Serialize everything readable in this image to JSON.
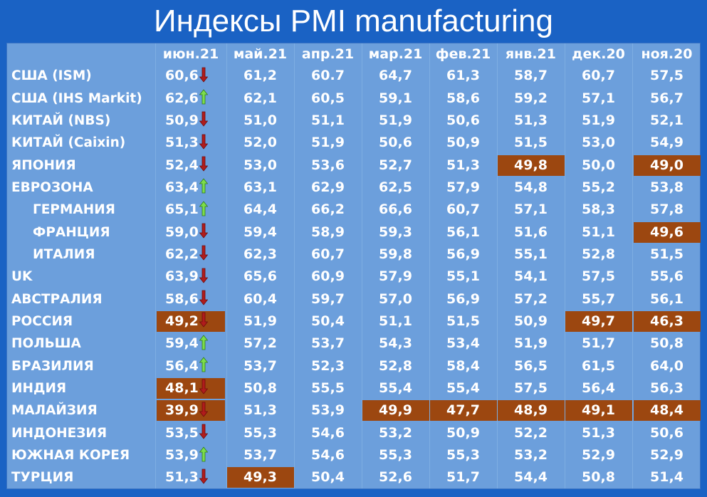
{
  "title": "Индексы PMI manufacturing",
  "colors": {
    "background": "#1a62c4",
    "table": "#6c9fdc",
    "highlight": "#9c4710",
    "arrow_up": "#7dde4a",
    "arrow_down": "#b01c1c"
  },
  "columns": [
    "июн.21",
    "май.21",
    "апр.21",
    "мар.21",
    "фев.21",
    "янв.21",
    "дек.20",
    "ноя.20"
  ],
  "rows": [
    {
      "name": "США (ISM)",
      "indent": false,
      "trend": "down",
      "values": [
        "60,6",
        "61,2",
        "60.7",
        "64,7",
        "61,3",
        "58,7",
        "60,7",
        "57,5"
      ],
      "hl": []
    },
    {
      "name": "США (IHS Markit)",
      "indent": false,
      "trend": "up",
      "values": [
        "62,6",
        "62,1",
        "60,5",
        "59,1",
        "58,6",
        "59,2",
        "57,1",
        "56,7"
      ],
      "hl": []
    },
    {
      "name": "КИТАЙ (NBS)",
      "indent": false,
      "trend": "down",
      "values": [
        "50,9",
        "51,0",
        "51,1",
        "51,9",
        "50,6",
        "51,3",
        "51,9",
        "52,1"
      ],
      "hl": []
    },
    {
      "name": "КИТАЙ (Caixin)",
      "indent": false,
      "trend": "down",
      "values": [
        "51,3",
        "52,0",
        "51,9",
        "50,6",
        "50,9",
        "51,5",
        "53,0",
        "54,9"
      ],
      "hl": []
    },
    {
      "name": "ЯПОНИЯ",
      "indent": false,
      "trend": "down",
      "values": [
        "52,4",
        "53,0",
        "53,6",
        "52,7",
        "51,3",
        "49,8",
        "50,0",
        "49,0"
      ],
      "hl": [
        5,
        7
      ]
    },
    {
      "name": "ЕВРОЗОНА",
      "indent": false,
      "trend": "up",
      "values": [
        "63,4",
        "63,1",
        "62,9",
        "62,5",
        "57,9",
        "54,8",
        "55,2",
        "53,8"
      ],
      "hl": []
    },
    {
      "name": "ГЕРМАНИЯ",
      "indent": true,
      "trend": "up",
      "values": [
        "65,1",
        "64,4",
        "66,2",
        "66,6",
        "60,7",
        "57,1",
        "58,3",
        "57,8"
      ],
      "hl": []
    },
    {
      "name": "ФРАНЦИЯ",
      "indent": true,
      "trend": "down",
      "values": [
        "59,0",
        "59,4",
        "58,9",
        "59,3",
        "56,1",
        "51,6",
        "51,1",
        "49,6"
      ],
      "hl": [
        7
      ]
    },
    {
      "name": "ИТАЛИЯ",
      "indent": true,
      "trend": "down",
      "values": [
        "62,2",
        "62,3",
        "60,7",
        "59,8",
        "56,9",
        "55,1",
        "52,8",
        "51,5"
      ],
      "hl": []
    },
    {
      "name": "UK",
      "indent": false,
      "trend": "down",
      "values": [
        "63,9",
        "65,6",
        "60,9",
        "57,9",
        "55,1",
        "54,1",
        "57,5",
        "55,6"
      ],
      "hl": []
    },
    {
      "name": "АВСТРАЛИЯ",
      "indent": false,
      "trend": "down",
      "values": [
        "58,6",
        "60,4",
        "59,7",
        "57,0",
        "56,9",
        "57,2",
        "55,7",
        "56,1"
      ],
      "hl": []
    },
    {
      "name": "РОССИЯ",
      "indent": false,
      "trend": "down",
      "values": [
        "49,2",
        "51,9",
        "50,4",
        "51,1",
        "51,5",
        "50,9",
        "49,7",
        "46,3"
      ],
      "hl": [
        0,
        6,
        7
      ]
    },
    {
      "name": "ПОЛЬША",
      "indent": false,
      "trend": "up",
      "values": [
        "59,4",
        "57,2",
        "53,7",
        "54,3",
        "53,4",
        "51,9",
        "51,7",
        "50,8"
      ],
      "hl": []
    },
    {
      "name": "БРАЗИЛИЯ",
      "indent": false,
      "trend": "up",
      "values": [
        "56,4",
        "53,7",
        "52,3",
        "52,8",
        "58,4",
        "56,5",
        "61,5",
        "64,0"
      ],
      "hl": []
    },
    {
      "name": "ИНДИЯ",
      "indent": false,
      "trend": "down",
      "values": [
        "48,1",
        "50,8",
        "55,5",
        "55,4",
        "55,4",
        "57,5",
        "56,4",
        "56,3"
      ],
      "hl": [
        0
      ]
    },
    {
      "name": "МАЛАЙЗИЯ",
      "indent": false,
      "trend": "down",
      "values": [
        "39,9",
        "51,3",
        "53,9",
        "49,9",
        "47,7",
        "48,9",
        "49,1",
        "48,4"
      ],
      "hl": [
        0,
        3,
        4,
        5,
        6,
        7
      ]
    },
    {
      "name": "ИНДОНЕЗИЯ",
      "indent": false,
      "trend": "down",
      "values": [
        "53,5",
        "55,3",
        "54,6",
        "53,2",
        "50,9",
        "52,2",
        "51,3",
        "50,6"
      ],
      "hl": []
    },
    {
      "name": "ЮЖНАЯ КОРЕЯ",
      "indent": false,
      "trend": "up",
      "values": [
        "53,9",
        "53,7",
        "54,6",
        "55,3",
        "55,3",
        "53,2",
        "52,9",
        "52,9"
      ],
      "hl": []
    },
    {
      "name": "ТУРЦИЯ",
      "indent": false,
      "trend": "down",
      "values": [
        "51,3",
        "49,3",
        "50,4",
        "52,6",
        "51,7",
        "54,4",
        "50,8",
        "51,4"
      ],
      "hl": [
        1
      ]
    }
  ]
}
